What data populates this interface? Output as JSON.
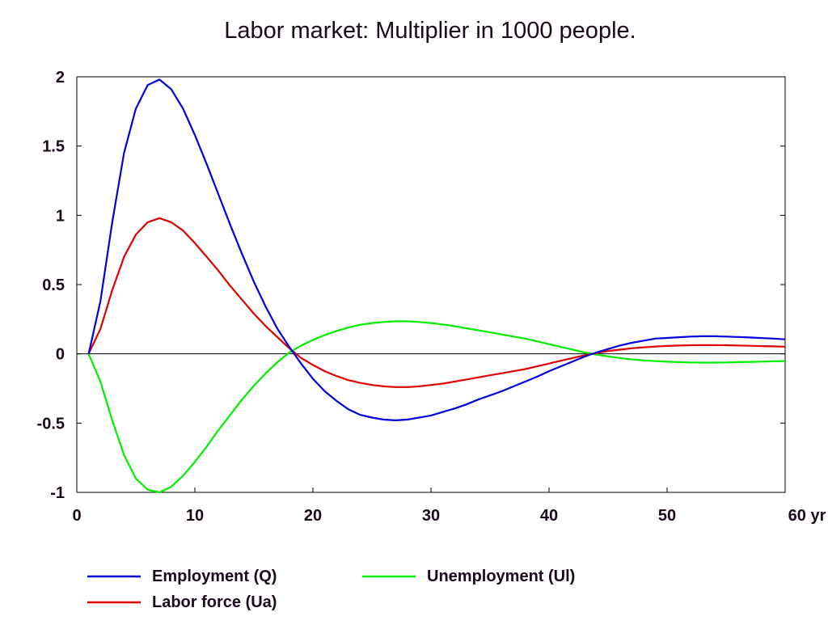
{
  "chart_data": {
    "type": "line",
    "title": "Labor market: Multiplier in 1000 people.",
    "xlim": [
      0,
      60
    ],
    "ylim": [
      -1,
      2
    ],
    "x_ticks": [
      0,
      10,
      20,
      30,
      40,
      50,
      60
    ],
    "x_tick_labels": [
      "0",
      "10",
      "20",
      "30",
      "40",
      "50",
      "60 yr"
    ],
    "y_ticks": [
      2,
      1.5,
      1,
      0.5,
      0,
      -0.5,
      -1
    ],
    "y_tick_labels": [
      "2",
      "1.5",
      "1",
      "0.5",
      "0",
      "-0.5",
      "-1"
    ],
    "zero_line": true,
    "grid": false,
    "legend_position": "bottom",
    "series": [
      {
        "name": "Employment (Q)",
        "color": "#0000dd",
        "points": [
          [
            1,
            0
          ],
          [
            2,
            0.38
          ],
          [
            3,
            0.95
          ],
          [
            4,
            1.45
          ],
          [
            5,
            1.77
          ],
          [
            6,
            1.94
          ],
          [
            7,
            1.98
          ],
          [
            8,
            1.91
          ],
          [
            9,
            1.77
          ],
          [
            10,
            1.58
          ],
          [
            11,
            1.37
          ],
          [
            12,
            1.15
          ],
          [
            13,
            0.93
          ],
          [
            14,
            0.72
          ],
          [
            15,
            0.52
          ],
          [
            16,
            0.34
          ],
          [
            17,
            0.18
          ],
          [
            18,
            0.05
          ],
          [
            19,
            -0.07
          ],
          [
            20,
            -0.18
          ],
          [
            21,
            -0.27
          ],
          [
            22,
            -0.34
          ],
          [
            23,
            -0.4
          ],
          [
            24,
            -0.44
          ],
          [
            25,
            -0.46
          ],
          [
            26,
            -0.475
          ],
          [
            27,
            -0.48
          ],
          [
            28,
            -0.475
          ],
          [
            29,
            -0.46
          ],
          [
            30,
            -0.445
          ],
          [
            31,
            -0.42
          ],
          [
            32,
            -0.395
          ],
          [
            33,
            -0.365
          ],
          [
            34,
            -0.33
          ],
          [
            35,
            -0.3
          ],
          [
            36,
            -0.27
          ],
          [
            37,
            -0.235
          ],
          [
            38,
            -0.2
          ],
          [
            39,
            -0.165
          ],
          [
            40,
            -0.125
          ],
          [
            41,
            -0.09
          ],
          [
            42,
            -0.055
          ],
          [
            43,
            -0.02
          ],
          [
            44,
            0.01
          ],
          [
            45,
            0.035
          ],
          [
            46,
            0.06
          ],
          [
            47,
            0.08
          ],
          [
            48,
            0.095
          ],
          [
            49,
            0.11
          ],
          [
            50,
            0.115
          ],
          [
            51,
            0.12
          ],
          [
            52,
            0.125
          ],
          [
            53,
            0.127
          ],
          [
            54,
            0.127
          ],
          [
            55,
            0.125
          ],
          [
            56,
            0.122
          ],
          [
            57,
            0.118
          ],
          [
            58,
            0.114
          ],
          [
            59,
            0.11
          ],
          [
            60,
            0.105
          ]
        ]
      },
      {
        "name": "Labor force (Ua)",
        "color": "#dd0000",
        "points": [
          [
            1,
            0
          ],
          [
            2,
            0.18
          ],
          [
            3,
            0.46
          ],
          [
            4,
            0.7
          ],
          [
            5,
            0.86
          ],
          [
            6,
            0.95
          ],
          [
            7,
            0.98
          ],
          [
            8,
            0.95
          ],
          [
            9,
            0.89
          ],
          [
            10,
            0.8
          ],
          [
            11,
            0.7
          ],
          [
            12,
            0.6
          ],
          [
            13,
            0.49
          ],
          [
            14,
            0.39
          ],
          [
            15,
            0.29
          ],
          [
            16,
            0.2
          ],
          [
            17,
            0.12
          ],
          [
            18,
            0.04
          ],
          [
            19,
            -0.03
          ],
          [
            20,
            -0.08
          ],
          [
            21,
            -0.125
          ],
          [
            22,
            -0.16
          ],
          [
            23,
            -0.19
          ],
          [
            24,
            -0.21
          ],
          [
            25,
            -0.225
          ],
          [
            26,
            -0.235
          ],
          [
            27,
            -0.24
          ],
          [
            28,
            -0.24
          ],
          [
            29,
            -0.235
          ],
          [
            30,
            -0.225
          ],
          [
            31,
            -0.215
          ],
          [
            32,
            -0.2
          ],
          [
            33,
            -0.185
          ],
          [
            34,
            -0.17
          ],
          [
            35,
            -0.155
          ],
          [
            36,
            -0.14
          ],
          [
            37,
            -0.125
          ],
          [
            38,
            -0.11
          ],
          [
            39,
            -0.09
          ],
          [
            40,
            -0.07
          ],
          [
            41,
            -0.05
          ],
          [
            42,
            -0.03
          ],
          [
            43,
            -0.01
          ],
          [
            44,
            0.005
          ],
          [
            45,
            0.02
          ],
          [
            46,
            0.03
          ],
          [
            47,
            0.04
          ],
          [
            48,
            0.047
          ],
          [
            49,
            0.053
          ],
          [
            50,
            0.057
          ],
          [
            51,
            0.06
          ],
          [
            52,
            0.062
          ],
          [
            53,
            0.063
          ],
          [
            54,
            0.063
          ],
          [
            55,
            0.062
          ],
          [
            56,
            0.06
          ],
          [
            57,
            0.058
          ],
          [
            58,
            0.056
          ],
          [
            59,
            0.054
          ],
          [
            60,
            0.052
          ]
        ]
      },
      {
        "name": "Unemployment (Ul)",
        "color": "#00ee00",
        "points": [
          [
            1,
            0
          ],
          [
            2,
            -0.2
          ],
          [
            3,
            -0.48
          ],
          [
            4,
            -0.73
          ],
          [
            5,
            -0.9
          ],
          [
            6,
            -0.98
          ],
          [
            7,
            -1.0
          ],
          [
            8,
            -0.96
          ],
          [
            9,
            -0.88
          ],
          [
            10,
            -0.78
          ],
          [
            11,
            -0.67
          ],
          [
            12,
            -0.55
          ],
          [
            13,
            -0.44
          ],
          [
            14,
            -0.33
          ],
          [
            15,
            -0.23
          ],
          [
            16,
            -0.14
          ],
          [
            17,
            -0.06
          ],
          [
            18,
            0.01
          ],
          [
            19,
            0.06
          ],
          [
            20,
            0.1
          ],
          [
            21,
            0.135
          ],
          [
            22,
            0.165
          ],
          [
            23,
            0.19
          ],
          [
            24,
            0.21
          ],
          [
            25,
            0.222
          ],
          [
            26,
            0.23
          ],
          [
            27,
            0.235
          ],
          [
            28,
            0.235
          ],
          [
            29,
            0.23
          ],
          [
            30,
            0.222
          ],
          [
            31,
            0.212
          ],
          [
            32,
            0.2
          ],
          [
            33,
            0.185
          ],
          [
            34,
            0.17
          ],
          [
            35,
            0.155
          ],
          [
            36,
            0.14
          ],
          [
            37,
            0.125
          ],
          [
            38,
            0.11
          ],
          [
            39,
            0.09
          ],
          [
            40,
            0.07
          ],
          [
            41,
            0.05
          ],
          [
            42,
            0.03
          ],
          [
            43,
            0.01
          ],
          [
            44,
            -0.005
          ],
          [
            45,
            -0.018
          ],
          [
            46,
            -0.03
          ],
          [
            47,
            -0.04
          ],
          [
            48,
            -0.047
          ],
          [
            49,
            -0.053
          ],
          [
            50,
            -0.057
          ],
          [
            51,
            -0.06
          ],
          [
            52,
            -0.062
          ],
          [
            53,
            -0.063
          ],
          [
            54,
            -0.063
          ],
          [
            55,
            -0.062
          ],
          [
            56,
            -0.06
          ],
          [
            57,
            -0.058
          ],
          [
            58,
            -0.056
          ],
          [
            59,
            -0.054
          ],
          [
            60,
            -0.052
          ]
        ]
      }
    ]
  }
}
